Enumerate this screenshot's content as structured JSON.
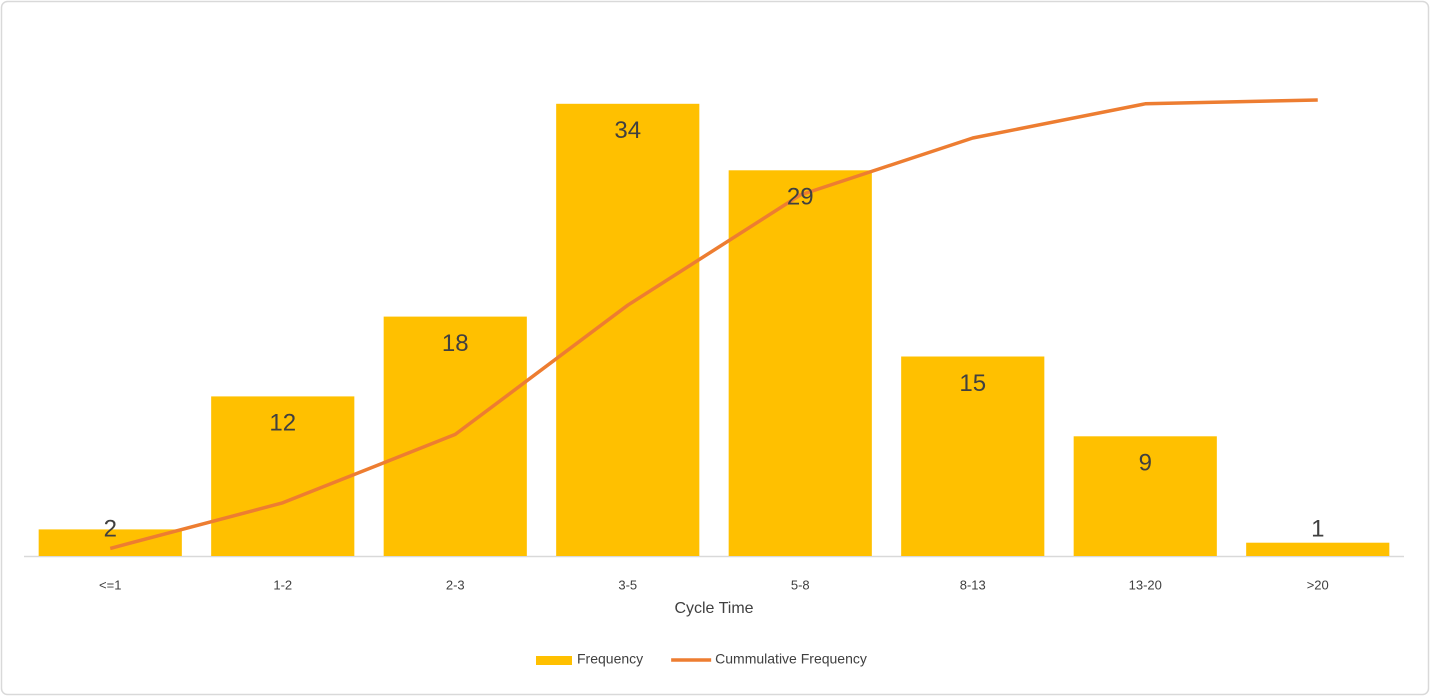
{
  "chart_data": {
    "type": "bar-line",
    "categories": [
      "<=1",
      "1-2",
      "2-3",
      "3-5",
      "5-8",
      "8-13",
      "13-20",
      ">20"
    ],
    "x_label": "Cycle Time",
    "series": [
      {
        "name": "Frequency",
        "type": "bar",
        "color": "#ffc000",
        "values": [
          2,
          12,
          18,
          34,
          29,
          15,
          9,
          1
        ]
      },
      {
        "name": "Cummulative Frequency",
        "type": "line",
        "axis": "y2",
        "color": "#ed7d31",
        "values": [
          2,
          14,
          32,
          66,
          95,
          110,
          119,
          120
        ]
      }
    ],
    "ylim": [
      0,
      40
    ],
    "y2lim": [
      0,
      140
    ],
    "legend": "bottom"
  }
}
